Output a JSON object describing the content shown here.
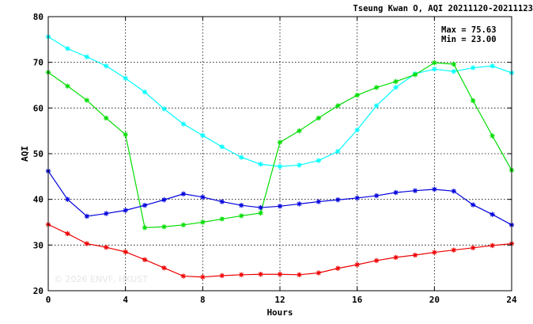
{
  "chart_data": {
    "type": "line",
    "title": "Tseung Kwan O, AQI 20211120-20211123",
    "xlabel": "Hours",
    "ylabel": "AQI",
    "xlim": [
      0,
      24
    ],
    "ylim": [
      20,
      80
    ],
    "xticks": [
      "0",
      "4",
      "8",
      "12",
      "16",
      "20",
      "24"
    ],
    "xtick_values": [
      0,
      4,
      8,
      12,
      16,
      20,
      24
    ],
    "yticks": [
      "20",
      "30",
      "40",
      "50",
      "60",
      "70",
      "80"
    ],
    "ytick_values": [
      20,
      30,
      40,
      50,
      60,
      70,
      80
    ],
    "grid": true,
    "stats": {
      "max_label": "Max = 75.63",
      "min_label": "Min = 23.00"
    },
    "watermark": "© 2026  ENVF, HKUST",
    "x": [
      0,
      1,
      2,
      3,
      4,
      5,
      6,
      7,
      8,
      9,
      10,
      11,
      12,
      13,
      14,
      15,
      16,
      17,
      18,
      19,
      20,
      21,
      22,
      23,
      24
    ],
    "series": [
      {
        "color": "#00ffff",
        "values": [
          75.6,
          73.0,
          71.2,
          69.2,
          66.5,
          63.5,
          59.8,
          56.5,
          54.0,
          51.5,
          49.2,
          47.7,
          47.2,
          47.5,
          48.5,
          50.5,
          55.2,
          60.5,
          64.5,
          67.5,
          68.5,
          68.0,
          68.8,
          69.2,
          67.7
        ]
      },
      {
        "color": "#00dd00",
        "values": [
          67.8,
          64.8,
          61.7,
          57.8,
          54.2,
          33.8,
          34.0,
          34.4,
          35.0,
          35.7,
          36.4,
          37.0,
          52.5,
          55.0,
          57.8,
          60.5,
          62.8,
          64.5,
          65.8,
          67.3,
          69.9,
          69.6,
          61.6,
          53.9,
          46.4
        ]
      },
      {
        "color": "#0000dd",
        "values": [
          46.2,
          40.0,
          36.3,
          36.9,
          37.6,
          38.7,
          39.9,
          41.2,
          40.5,
          39.5,
          38.7,
          38.2,
          38.5,
          39.0,
          39.5,
          39.9,
          40.3,
          40.8,
          41.5,
          41.9,
          42.2,
          41.8,
          38.8,
          36.7,
          34.4
        ]
      },
      {
        "color": "#ee0000",
        "values": [
          34.5,
          32.5,
          30.3,
          29.5,
          28.5,
          26.8,
          25.0,
          23.2,
          23.0,
          23.3,
          23.5,
          23.6,
          23.6,
          23.5,
          23.9,
          24.9,
          25.7,
          26.6,
          27.3,
          27.8,
          28.4,
          28.9,
          29.4,
          29.9,
          30.3
        ]
      }
    ]
  }
}
